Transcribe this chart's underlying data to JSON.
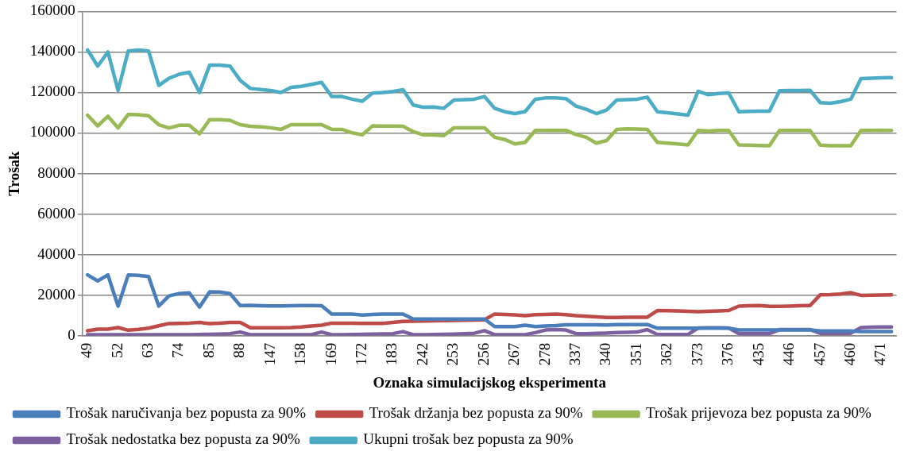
{
  "chart_data": {
    "type": "line",
    "xlabel": "Oznaka simulacijskog eksperimenta",
    "ylabel": "Trošak",
    "categories": [
      "49",
      null,
      null,
      "52",
      null,
      null,
      "63",
      null,
      null,
      "74",
      null,
      null,
      "85",
      null,
      null,
      "88",
      null,
      null,
      "147",
      null,
      null,
      "158",
      null,
      null,
      "169",
      null,
      null,
      "172",
      null,
      null,
      "183",
      null,
      null,
      "242",
      null,
      null,
      "253",
      null,
      null,
      "256",
      null,
      null,
      "267",
      null,
      null,
      "278",
      null,
      null,
      "337",
      null,
      null,
      "340",
      null,
      null,
      "351",
      null,
      null,
      "362",
      null,
      null,
      "373",
      null,
      null,
      "376",
      null,
      null,
      "435",
      null,
      null,
      "446",
      null,
      null,
      "457",
      null,
      null,
      "460",
      null,
      null,
      "471",
      null
    ],
    "series": [
      {
        "name": "Trošak naručivanja bez popusta za 90%",
        "color": "#4a7ebb",
        "values": [
          30000,
          27000,
          30000,
          14600,
          30000,
          29800,
          29200,
          14600,
          19600,
          20800,
          21100,
          14100,
          21600,
          21500,
          20800,
          14900,
          15000,
          14800,
          14700,
          14700,
          14800,
          14900,
          14900,
          14800,
          10700,
          10700,
          10700,
          10200,
          10500,
          10700,
          10700,
          10700,
          8200,
          8200,
          8200,
          8200,
          8200,
          8200,
          8200,
          8200,
          4500,
          4500,
          4500,
          5200,
          4500,
          4800,
          5000,
          5400,
          5400,
          5400,
          5400,
          5300,
          5500,
          5500,
          5500,
          5500,
          3700,
          3700,
          3700,
          3700,
          3700,
          3700,
          3700,
          3700,
          2800,
          2800,
          2800,
          2800,
          2800,
          2800,
          2800,
          2800,
          2300,
          2300,
          2300,
          2300,
          2000,
          2000,
          2000,
          2000
        ]
      },
      {
        "name": "Trošak držanja bez popusta za 90%",
        "color": "#be4b48",
        "values": [
          2400,
          3200,
          3200,
          4000,
          2700,
          3100,
          3700,
          4900,
          6000,
          6100,
          6200,
          6500,
          6000,
          6200,
          6500,
          6500,
          3900,
          3900,
          3900,
          3900,
          4000,
          4300,
          4800,
          5200,
          6200,
          6200,
          6200,
          6100,
          6100,
          6100,
          6500,
          7000,
          7100,
          7200,
          7300,
          7400,
          7500,
          7600,
          7700,
          7800,
          10700,
          10500,
          10300,
          9900,
          10400,
          10500,
          10700,
          10400,
          9900,
          9600,
          9300,
          9000,
          9000,
          9100,
          9100,
          9100,
          12400,
          12300,
          12200,
          12000,
          11800,
          12000,
          12200,
          12400,
          14600,
          14800,
          14900,
          14500,
          14500,
          14600,
          14800,
          14900,
          20200,
          20300,
          20600,
          21200,
          19900,
          20000,
          20100,
          20200
        ]
      },
      {
        "name": "Trošak prijevoza bez popusta za 90%",
        "color": "#98b954",
        "values": [
          108800,
          103500,
          108300,
          102500,
          109200,
          109000,
          108500,
          104100,
          102500,
          103800,
          103800,
          99600,
          106600,
          106600,
          106300,
          104100,
          103300,
          103000,
          102600,
          101800,
          104100,
          104100,
          104100,
          104100,
          101800,
          101800,
          100100,
          99100,
          103500,
          103400,
          103400,
          103300,
          100700,
          99100,
          99000,
          98700,
          102600,
          102600,
          102600,
          102600,
          97900,
          96800,
          94600,
          95400,
          101300,
          101300,
          101300,
          101300,
          99300,
          97900,
          95000,
          96300,
          101800,
          102100,
          102000,
          101800,
          95400,
          95000,
          94600,
          94100,
          101300,
          101000,
          101300,
          101300,
          94100,
          94000,
          93800,
          93700,
          101300,
          101300,
          101300,
          101300,
          94000,
          93700,
          93700,
          93700,
          101300,
          101300,
          101400,
          101300
        ]
      },
      {
        "name": "Trošak nedostatka bez popusta za 90%",
        "color": "#7d60a0",
        "values": [
          500,
          500,
          500,
          500,
          500,
          500,
          500,
          500,
          500,
          500,
          500,
          600,
          700,
          800,
          1000,
          1800,
          500,
          500,
          500,
          500,
          500,
          500,
          500,
          1800,
          500,
          500,
          600,
          700,
          800,
          900,
          1000,
          2000,
          500,
          500,
          600,
          700,
          800,
          1000,
          1200,
          2500,
          500,
          500,
          500,
          500,
          1500,
          2800,
          3000,
          2800,
          1000,
          1000,
          1200,
          1300,
          1500,
          1600,
          1800,
          3000,
          600,
          600,
          600,
          600,
          3800,
          3900,
          3900,
          3800,
          1000,
          1000,
          1000,
          1000,
          3000,
          3000,
          3000,
          3000,
          1200,
          1200,
          1200,
          1200,
          4000,
          4200,
          4300,
          4300
        ]
      },
      {
        "name": "Ukupni trošak bez popusta za 90%",
        "color": "#4bacc6",
        "values": [
          141000,
          133000,
          140000,
          121000,
          140500,
          141000,
          140500,
          123500,
          127000,
          129000,
          130000,
          120000,
          133500,
          133500,
          133000,
          126000,
          122000,
          121500,
          121000,
          120000,
          122500,
          123000,
          124000,
          125000,
          118000,
          118000,
          116700,
          115700,
          119700,
          120000,
          120500,
          121400,
          113800,
          112700,
          112800,
          112200,
          116300,
          116500,
          116700,
          118000,
          112200,
          110500,
          109600,
          110600,
          116700,
          117300,
          117300,
          117000,
          113300,
          111700,
          109600,
          111300,
          116300,
          116500,
          116700,
          117700,
          110500,
          110000,
          109400,
          108800,
          120600,
          118900,
          119500,
          119800,
          110500,
          110700,
          110800,
          110800,
          120900,
          121000,
          121000,
          121100,
          115000,
          114700,
          115500,
          116700,
          126800,
          127000,
          127200,
          127300
        ]
      }
    ],
    "ylim": [
      0,
      160000
    ],
    "yticks": [
      0,
      20000,
      40000,
      60000,
      80000,
      100000,
      120000,
      140000,
      160000
    ],
    "grid": "y",
    "legend": "bottom",
    "marker": "none",
    "line_style": "solid"
  }
}
